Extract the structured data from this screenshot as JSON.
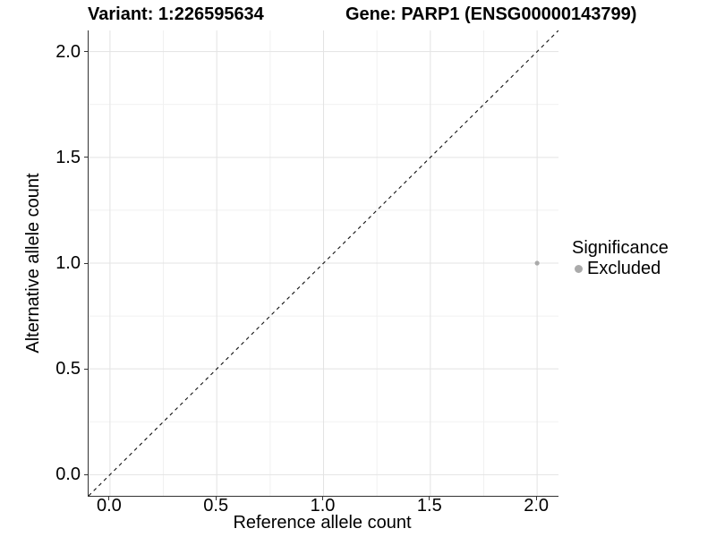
{
  "page": {
    "background": "#ffffff"
  },
  "header": {
    "variant_title": "Variant: 1:226595634",
    "gene_title": "Gene: PARP1 (ENSG00000143799)"
  },
  "chart_data": {
    "type": "scatter",
    "title": "Variant: 1:226595634    Gene: PARP1 (ENSG00000143799)",
    "xlabel": "Reference allele count",
    "ylabel": "Alternative allele count",
    "xlim": [
      -0.1,
      2.1
    ],
    "ylim": [
      -0.1,
      2.1
    ],
    "x_ticks": {
      "values": [
        0,
        0.5,
        1,
        1.5,
        2
      ],
      "labels": [
        "0.0",
        "0.5",
        "1.0",
        "1.5",
        "2.0"
      ]
    },
    "y_ticks": {
      "values": [
        0,
        0.5,
        1,
        1.5,
        2
      ],
      "labels": [
        "0.0",
        "0.5",
        "1.0",
        "1.5",
        "2.0"
      ]
    },
    "x_minor": [
      0.25,
      0.75,
      1.25,
      1.75
    ],
    "y_minor": [
      0.25,
      0.75,
      1.25,
      1.75
    ],
    "grid": "major+minor",
    "series": [
      {
        "name": "Excluded",
        "color": "#aaaaaa",
        "points": [
          {
            "x": 2.0,
            "y": 1.0
          }
        ]
      }
    ],
    "reference_line": {
      "type": "identity",
      "style": "dashed",
      "color": "#111111",
      "from": [
        -0.1,
        -0.1
      ],
      "to": [
        2.1,
        2.1
      ]
    },
    "legend": {
      "title": "Significance",
      "position": "right",
      "entries": [
        {
          "label": "Excluded",
          "marker": "circle",
          "color": "#aaaaaa"
        }
      ]
    }
  },
  "colors": {
    "grid_major": "#e3e3e3",
    "grid_minor": "#f1f1f1",
    "axis_line": "#333333",
    "tick_mark": "#333333",
    "text": "#000000",
    "point": "#aaaaaa"
  }
}
